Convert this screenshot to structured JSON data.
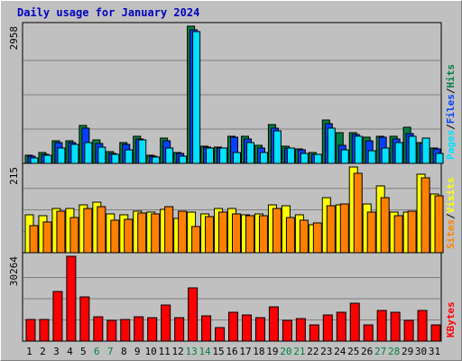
{
  "title": "Daily usage for January 2024",
  "colors": {
    "hits": "#008040",
    "files": "#0040ff",
    "pages": "#00e0ff",
    "visits": "#ffff00",
    "sites": "#ff8000",
    "kbytes": "#ff0000",
    "weekend_label": "#008040",
    "weekday_label": "#000000",
    "title": "#0000c0",
    "panel": "#c0c0c0",
    "grid": "#808080"
  },
  "chart_data": {
    "type": "bar",
    "title": "Daily usage for January 2024",
    "categories": [
      "1",
      "2",
      "3",
      "4",
      "5",
      "6",
      "7",
      "8",
      "9",
      "10",
      "11",
      "12",
      "13",
      "14",
      "15",
      "16",
      "17",
      "18",
      "19",
      "20",
      "21",
      "22",
      "23",
      "24",
      "25",
      "26",
      "27",
      "28",
      "29",
      "30",
      "31"
    ],
    "weekend_days": [
      "6",
      "7",
      "13",
      "14",
      "20",
      "21",
      "27",
      "28"
    ],
    "panels": [
      {
        "id": "traffic",
        "max_label": "2958",
        "ylim": [
          0,
          2958
        ],
        "legend": [
          {
            "text": "Hits",
            "color_key": "hits"
          },
          {
            "text": "/",
            "color_key": null
          },
          {
            "text": "Files",
            "color_key": "files"
          },
          {
            "text": "/",
            "color_key": null
          },
          {
            "text": "Pages",
            "color_key": "pages"
          }
        ],
        "series": [
          {
            "name": "Hits",
            "color_key": "hits",
            "values": [
              170,
              230,
              480,
              480,
              820,
              500,
              250,
              450,
              580,
              180,
              540,
              240,
              2958,
              370,
              360,
              590,
              590,
              380,
              830,
              370,
              320,
              230,
              930,
              670,
              670,
              560,
              590,
              590,
              770,
              450,
              330
            ]
          },
          {
            "name": "Files",
            "color_key": "files",
            "values": [
              160,
              200,
              440,
              440,
              750,
              420,
              220,
              410,
              520,
              160,
              480,
              220,
              2880,
              360,
              340,
              560,
              520,
              340,
              760,
              330,
              290,
              200,
              860,
              390,
              630,
              490,
              560,
              530,
              640,
              430,
              310
            ]
          },
          {
            "name": "Pages",
            "color_key": "pages",
            "values": [
              120,
              170,
              330,
              400,
              440,
              350,
              200,
              300,
              500,
              130,
              340,
              150,
              2850,
              340,
              330,
              240,
              440,
              230,
              700,
              330,
              210,
              190,
              760,
              300,
              580,
              270,
              340,
              440,
              580,
              550,
              220
            ]
          }
        ]
      },
      {
        "id": "visitors",
        "max_label": "215",
        "ylim": [
          0,
          215
        ],
        "legend": [
          {
            "text": "Visits",
            "color_key": "visits"
          },
          {
            "text": "/",
            "color_key": null
          },
          {
            "text": "Sites",
            "color_key": "sites"
          }
        ],
        "series": [
          {
            "name": "Visits",
            "color_key": "visits",
            "values": [
              95,
              92,
              112,
              110,
              120,
              127,
              97,
              95,
              104,
              101,
              109,
              85,
              102,
              98,
              112,
              110,
              95,
              98,
              121,
              118,
              95,
              70,
              139,
              120,
              215,
              122,
              168,
              101,
              102,
              198,
              148
            ]
          },
          {
            "name": "Sites",
            "color_key": "sites",
            "values": [
              68,
              77,
              103,
              88,
              111,
              116,
              82,
              83,
              100,
              98,
              115,
              105,
              66,
              90,
              101,
              97,
              92,
              93,
              111,
              89,
              82,
              74,
              118,
              122,
              200,
              102,
              139,
              93,
              103,
              188,
              143
            ]
          }
        ]
      },
      {
        "id": "volume",
        "max_label": "30264",
        "ylim": [
          0,
          30264
        ],
        "legend": [
          {
            "text": "KBytes",
            "color_key": "kbytes"
          }
        ],
        "series": [
          {
            "name": "KBytes",
            "color_key": "kbytes",
            "values": [
              7800,
              7800,
              17800,
              30264,
              15800,
              8800,
              7500,
              7800,
              8800,
              8300,
              12800,
              8300,
              19100,
              9000,
              4800,
              10300,
              9300,
              8300,
              12300,
              7500,
              8000,
              5800,
              9300,
              10200,
              13500,
              5700,
              11000,
              10200,
              7500,
              11000,
              5700
            ]
          }
        ]
      }
    ]
  }
}
